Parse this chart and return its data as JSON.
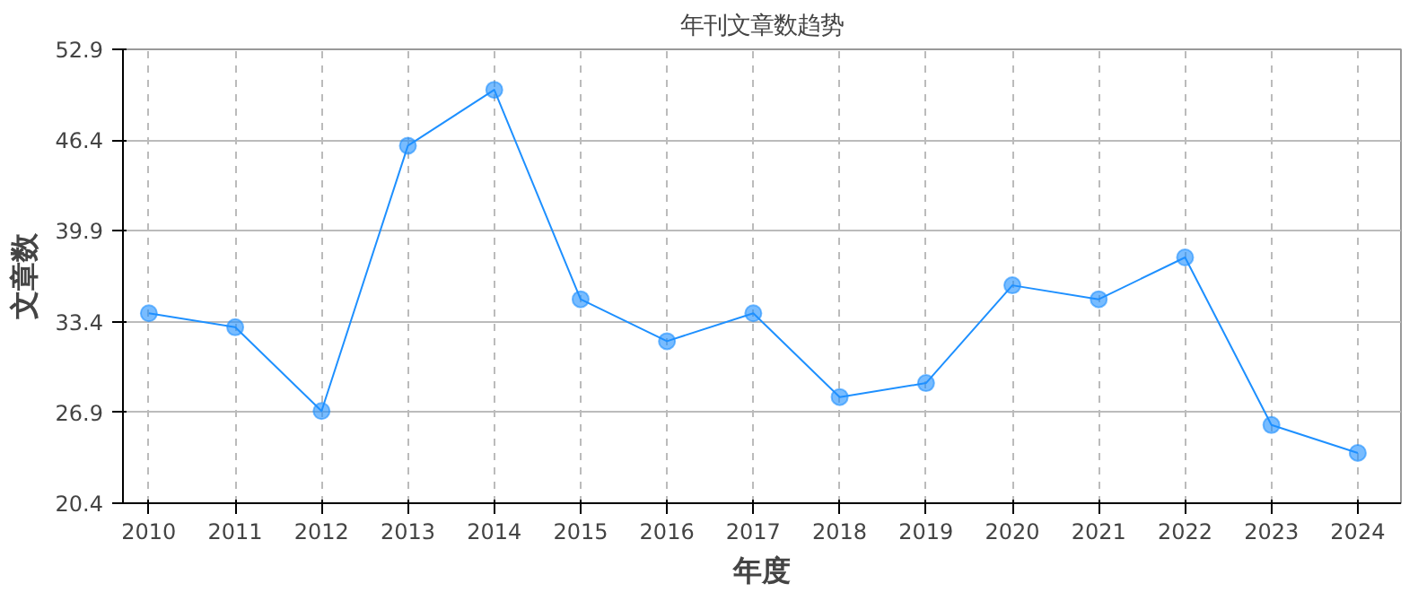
{
  "chart_data": {
    "type": "line",
    "title": "年刊文章数趋势",
    "xlabel": "年度",
    "ylabel": "文章数",
    "categories": [
      "2010",
      "2011",
      "2012",
      "2013",
      "2014",
      "2015",
      "2016",
      "2017",
      "2018",
      "2019",
      "2020",
      "2021",
      "2022",
      "2023",
      "2024"
    ],
    "series": [
      {
        "color": "#1e90ff",
        "values": [
          34,
          33,
          27,
          46,
          50,
          35,
          32,
          34,
          28,
          29,
          36,
          35,
          38,
          26,
          24
        ]
      }
    ],
    "ylim": [
      20.4,
      52.9
    ],
    "yticks": [
      20.4,
      26.9,
      33.4,
      39.9,
      46.4,
      52.9
    ],
    "grid": true,
    "marker": "circle",
    "line_style": "solid"
  }
}
